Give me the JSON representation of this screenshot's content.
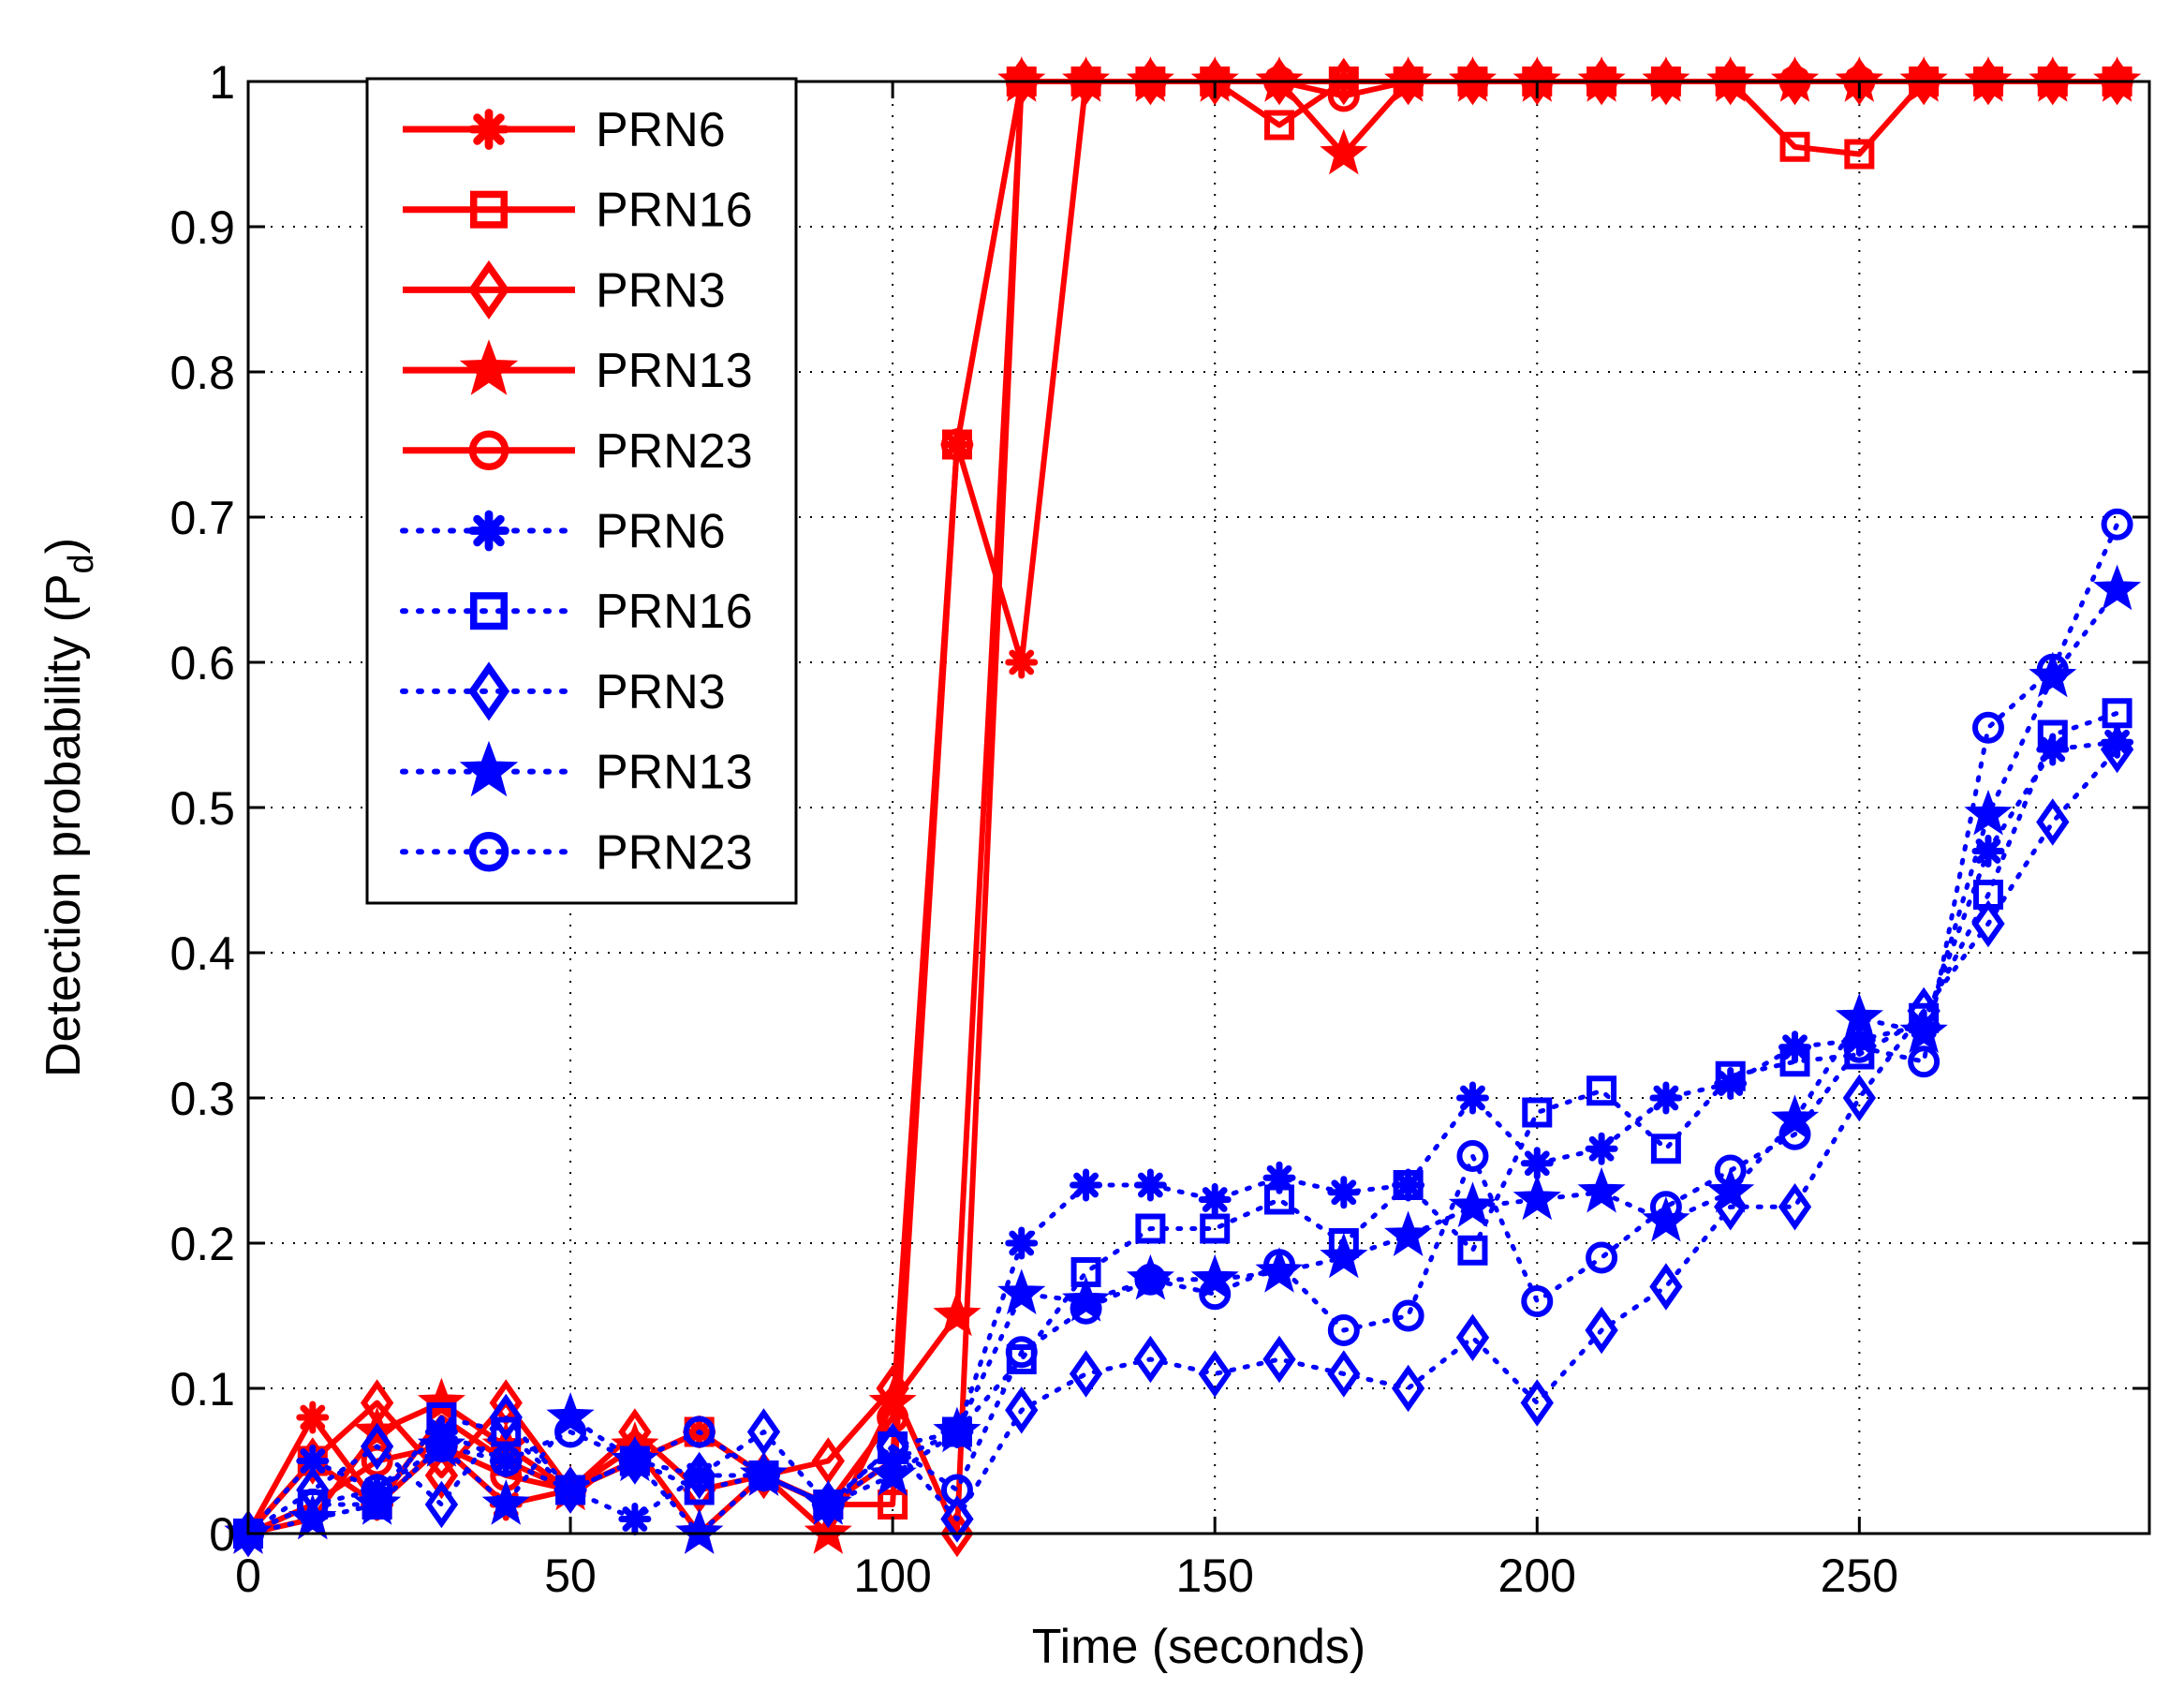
{
  "chart_data": {
    "type": "line",
    "title": "",
    "xlabel": "Time (seconds)",
    "ylabel_main": "Detection probability (P",
    "ylabel_sub": "d",
    "ylabel_close": ")",
    "xlim": [
      0,
      295
    ],
    "ylim": [
      0,
      1
    ],
    "xticks": [
      0,
      50,
      100,
      150,
      200,
      250
    ],
    "xtick_labels": [
      "0",
      "50",
      "100",
      "150",
      "200",
      "250"
    ],
    "yticks": [
      0,
      0.1,
      0.2,
      0.3,
      0.4,
      0.5,
      0.6,
      0.7,
      0.8,
      0.9,
      1
    ],
    "ytick_labels": [
      "0",
      "0.1",
      "0.2",
      "0.3",
      "0.4",
      "0.5",
      "0.6",
      "0.7",
      "0.8",
      "0.9",
      "1"
    ],
    "grid": true,
    "legend_position": "top-left",
    "x": [
      0,
      10,
      20,
      30,
      40,
      50,
      60,
      70,
      80,
      90,
      100,
      110,
      120,
      130,
      140,
      150,
      160,
      170,
      180,
      190,
      200,
      210,
      220,
      230,
      240,
      250,
      260,
      270,
      280,
      290
    ],
    "colors": {
      "red": "#ff0000",
      "blue": "#0000ff"
    },
    "series": [
      {
        "name": "PRN6",
        "color": "#ff0000",
        "style": "solid",
        "marker": "asterisk",
        "values": [
          0,
          0.08,
          0.02,
          0.06,
          0.02,
          0.03,
          0.05,
          0.07,
          0.04,
          0.02,
          0.05,
          0.75,
          0.6,
          1,
          1,
          1,
          1,
          1,
          1,
          1,
          1,
          1,
          1,
          1,
          1,
          1,
          1,
          1,
          1,
          1
        ]
      },
      {
        "name": "PRN16",
        "color": "#ff0000",
        "style": "solid",
        "marker": "square",
        "values": [
          0,
          0.05,
          0.02,
          0.08,
          0.05,
          0.03,
          0.05,
          0.07,
          0.04,
          0.02,
          0.02,
          0.75,
          1,
          1,
          1,
          1,
          0.97,
          1,
          1,
          1,
          1,
          1,
          1,
          1,
          0.955,
          0.95,
          1,
          1,
          1,
          1
        ]
      },
      {
        "name": "PRN3",
        "color": "#ff0000",
        "style": "solid",
        "marker": "diamond",
        "values": [
          0,
          0.05,
          0.09,
          0.04,
          0.09,
          0.03,
          0.07,
          0.03,
          0.04,
          0.05,
          0.1,
          0,
          1,
          1,
          1,
          1,
          1,
          1,
          1,
          1,
          1,
          1,
          1,
          1,
          1,
          1,
          1,
          1,
          1,
          1
        ]
      },
      {
        "name": "PRN13",
        "color": "#ff0000",
        "style": "solid",
        "marker": "star",
        "values": [
          0,
          0.01,
          0.07,
          0.09,
          0.06,
          0.03,
          0.06,
          0,
          0.04,
          0,
          0.09,
          0.15,
          1,
          1,
          1,
          1,
          1,
          0.95,
          1,
          1,
          1,
          1,
          1,
          1,
          1,
          1,
          1,
          1,
          1,
          1
        ]
      },
      {
        "name": "PRN23",
        "color": "#ff0000",
        "style": "solid",
        "marker": "circle",
        "values": [
          0,
          0.02,
          0.05,
          0.06,
          0.04,
          0.03,
          0.05,
          0.07,
          0.04,
          0.02,
          0.08,
          0.75,
          1,
          1,
          1,
          1,
          1,
          0.99,
          1,
          1,
          1,
          1,
          1,
          1,
          1,
          1,
          1,
          1,
          1,
          1
        ]
      },
      {
        "name": "PRN6",
        "color": "#0000ff",
        "style": "dotted",
        "marker": "asterisk",
        "values": [
          0,
          0.05,
          0.03,
          0.07,
          0.05,
          0.03,
          0.01,
          0.04,
          0.04,
          0.02,
          0.05,
          0.07,
          0.2,
          0.24,
          0.24,
          0.23,
          0.245,
          0.235,
          0.24,
          0.3,
          0.255,
          0.265,
          0.3,
          0.31,
          0.335,
          0.34,
          0.35,
          0.47,
          0.54,
          0.545
        ]
      },
      {
        "name": "PRN16",
        "color": "#0000ff",
        "style": "dotted",
        "marker": "square",
        "values": [
          0,
          0.02,
          0.02,
          0.08,
          0.07,
          0.03,
          0.05,
          0.03,
          0.04,
          0.02,
          0.06,
          0.07,
          0.12,
          0.18,
          0.21,
          0.21,
          0.23,
          0.2,
          0.24,
          0.195,
          0.29,
          0.305,
          0.265,
          0.315,
          0.325,
          0.33,
          0.355,
          0.44,
          0.55,
          0.565
        ]
      },
      {
        "name": "PRN3",
        "color": "#0000ff",
        "style": "dotted",
        "marker": "diamond",
        "values": [
          0,
          0.03,
          0.06,
          0.02,
          0.08,
          0.03,
          0.05,
          0.04,
          0.07,
          0.02,
          0.06,
          0.01,
          0.085,
          0.11,
          0.12,
          0.11,
          0.12,
          0.11,
          0.1,
          0.135,
          0.09,
          0.14,
          0.17,
          0.225,
          0.225,
          0.3,
          0.36,
          0.42,
          0.49,
          0.54
        ]
      },
      {
        "name": "PRN13",
        "color": "#0000ff",
        "style": "dotted",
        "marker": "star",
        "values": [
          0,
          0.01,
          0.02,
          0.06,
          0.02,
          0.08,
          0.05,
          0,
          0.04,
          0.02,
          0.04,
          0.07,
          0.165,
          0.16,
          0.175,
          0.175,
          0.18,
          0.19,
          0.205,
          0.225,
          0.23,
          0.235,
          0.215,
          0.235,
          0.285,
          0.355,
          0.345,
          0.495,
          0.59,
          0.65
        ]
      },
      {
        "name": "PRN23",
        "color": "#0000ff",
        "style": "dotted",
        "marker": "circle",
        "values": [
          0,
          0.02,
          0.03,
          0.06,
          0.05,
          0.07,
          0.05,
          0.07,
          0.04,
          0.02,
          0.06,
          0.03,
          0.125,
          0.155,
          0.175,
          0.165,
          0.185,
          0.14,
          0.15,
          0.26,
          0.16,
          0.19,
          0.225,
          0.25,
          0.275,
          0.335,
          0.325,
          0.555,
          0.595,
          0.695
        ]
      }
    ]
  }
}
